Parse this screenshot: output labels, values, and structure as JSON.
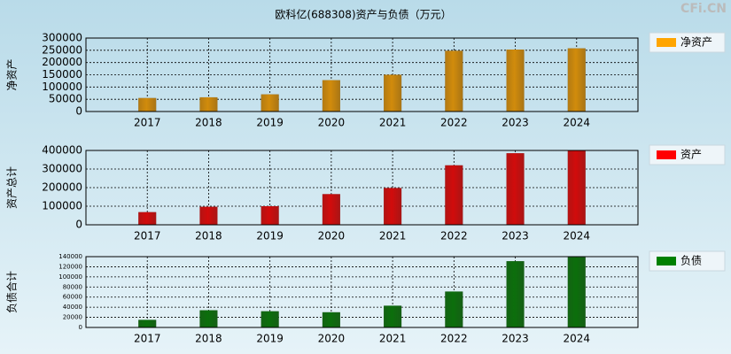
{
  "watermark": "CFi.CN",
  "chart_data": [
    {
      "type": "bar",
      "title": "欧科亿(688308)资产与负债（万元）",
      "y_label": "净资产",
      "categories": [
        "2017",
        "2018",
        "2019",
        "2020",
        "2021",
        "2022",
        "2023",
        "2024"
      ],
      "series": [
        {
          "name": "净资产",
          "color": "#ffa500",
          "values": [
            55000,
            58000,
            70000,
            128000,
            150000,
            248000,
            253000,
            258000
          ]
        }
      ],
      "ylim": [
        0,
        300000
      ],
      "yticks": [
        0,
        50000,
        100000,
        150000,
        200000,
        250000,
        300000
      ],
      "grid": true,
      "legend": "right"
    },
    {
      "type": "bar",
      "y_label": "资产总计",
      "categories": [
        "2017",
        "2018",
        "2019",
        "2020",
        "2021",
        "2022",
        "2023",
        "2024"
      ],
      "series": [
        {
          "name": "资产",
          "color": "#ff0000",
          "values": [
            68000,
            97000,
            100000,
            165000,
            198000,
            320000,
            385000,
            400000
          ]
        }
      ],
      "ylim": [
        0,
        400000
      ],
      "yticks": [
        0,
        100000,
        200000,
        300000,
        400000
      ],
      "grid": true,
      "legend": "right"
    },
    {
      "type": "bar",
      "y_label": "负债合计",
      "categories": [
        "2017",
        "2018",
        "2019",
        "2020",
        "2021",
        "2022",
        "2023",
        "2024"
      ],
      "series": [
        {
          "name": "负债",
          "color": "#008000",
          "values": [
            15000,
            34000,
            32000,
            30000,
            43000,
            71000,
            131000,
            139000
          ]
        }
      ],
      "ylim": [
        0,
        140000
      ],
      "yticks": [
        0,
        20000,
        40000,
        60000,
        80000,
        100000,
        120000,
        140000
      ],
      "grid": true,
      "legend": "right"
    }
  ]
}
